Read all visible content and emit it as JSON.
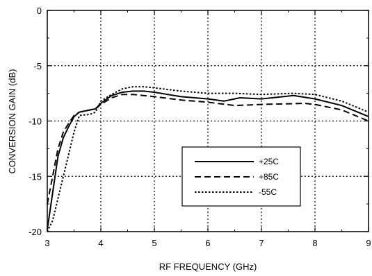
{
  "chart_data": {
    "type": "line",
    "xlabel": "RF FREQUENCY (GHz)",
    "ylabel": "CONVERSION GAIN (dB)",
    "xlim": [
      3,
      9
    ],
    "ylim": [
      -20,
      0
    ],
    "x_ticks": [
      "3",
      "4",
      "5",
      "6",
      "7",
      "8",
      "9"
    ],
    "y_ticks": [
      "0",
      "-5",
      "-10",
      "-15",
      "-20"
    ],
    "grid": true,
    "legend_position": "lower-center-right",
    "series": [
      {
        "name": "+25C",
        "style": "solid",
        "x": [
          3.0,
          3.1,
          3.2,
          3.3,
          3.4,
          3.5,
          3.6,
          3.8,
          3.9,
          4.0,
          4.2,
          4.4,
          4.6,
          4.8,
          5.0,
          5.5,
          6.0,
          6.3,
          6.6,
          7.0,
          7.6,
          8.0,
          8.5,
          9.0
        ],
        "y": [
          -19.8,
          -16.5,
          -13.2,
          -11.5,
          -10.5,
          -9.6,
          -9.2,
          -9.0,
          -8.9,
          -8.4,
          -7.7,
          -7.4,
          -7.3,
          -7.3,
          -7.4,
          -7.8,
          -8.0,
          -8.2,
          -7.9,
          -8.0,
          -7.7,
          -8.0,
          -8.6,
          -9.6
        ]
      },
      {
        "name": "+85C",
        "style": "dashed",
        "x": [
          3.0,
          3.1,
          3.2,
          3.3,
          3.4,
          3.5,
          3.6,
          3.8,
          3.9,
          4.0,
          4.2,
          4.4,
          4.6,
          4.8,
          5.0,
          5.5,
          6.0,
          6.5,
          7.0,
          7.8,
          8.0,
          8.5,
          9.0
        ],
        "y": [
          -17.5,
          -15.0,
          -12.5,
          -11.0,
          -10.2,
          -9.5,
          -9.2,
          -9.0,
          -8.9,
          -8.5,
          -7.9,
          -7.6,
          -7.6,
          -7.7,
          -7.8,
          -8.1,
          -8.3,
          -8.6,
          -8.5,
          -8.4,
          -8.5,
          -9.0,
          -10.0
        ]
      },
      {
        "name": "-55C",
        "style": "dotted",
        "x": [
          3.0,
          3.1,
          3.2,
          3.3,
          3.4,
          3.5,
          3.6,
          3.8,
          3.9,
          4.0,
          4.2,
          4.4,
          4.6,
          4.8,
          5.0,
          5.5,
          6.0,
          6.5,
          7.0,
          7.6,
          8.0,
          8.5,
          9.0
        ],
        "y": [
          -20.0,
          -19.0,
          -17.0,
          -15.0,
          -13.0,
          -11.0,
          -9.5,
          -9.4,
          -9.2,
          -8.2,
          -7.6,
          -7.1,
          -6.9,
          -6.9,
          -7.0,
          -7.3,
          -7.5,
          -7.5,
          -7.6,
          -7.5,
          -7.6,
          -8.2,
          -9.2
        ]
      }
    ]
  }
}
